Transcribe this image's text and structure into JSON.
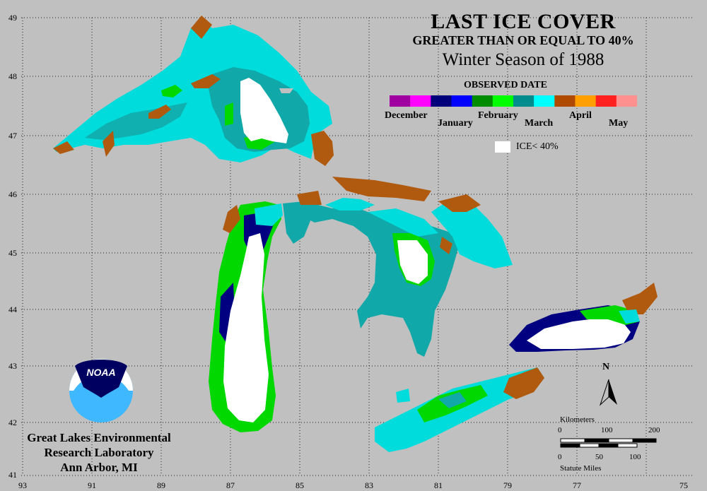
{
  "title": {
    "line1": "LAST ICE COVER",
    "line2": "GREATER THAN OR EQUAL TO 40%",
    "line3": "Winter Season of 1988"
  },
  "legend": {
    "title": "OBSERVED DATE",
    "months": [
      "December",
      "January",
      "February",
      "March",
      "April",
      "May"
    ],
    "colors": [
      "#a000a0",
      "#ff00ff",
      "#00007a",
      "#0000ff",
      "#008c00",
      "#00ff00",
      "#008c8c",
      "#00ffff",
      "#b04a00",
      "#ffa000",
      "#ff2020",
      "#ff9090"
    ],
    "ice_label": "ICE< 40%"
  },
  "axes": {
    "latitudes": [
      "49",
      "48",
      "47",
      "46",
      "45",
      "44",
      "43",
      "42",
      "41"
    ],
    "longitudes": [
      "93",
      "91",
      "89",
      "87",
      "85",
      "83",
      "81",
      "79",
      "77",
      "75"
    ]
  },
  "lab": {
    "line1": "Great Lakes Environmental",
    "line2": "Research Laboratory",
    "line3": "Ann Arbor, MI",
    "logo_text": "NOAA"
  },
  "scale_bar": {
    "km_label": "Kilometers",
    "km_ticks": [
      "0",
      "100",
      "200"
    ],
    "mi_label": "Statute Miles",
    "mi_ticks": [
      "0",
      "50",
      "100"
    ]
  },
  "north_label": "N",
  "colors": {
    "background": "#c0c0c0",
    "ice_lt_40": "#ffffff",
    "march_cyan": "#00e0e0",
    "march_teal": "#10a8a8",
    "february_green": "#00d800",
    "january_navy": "#000080",
    "april_brown": "#b05a10",
    "land_gray": "#c0c0c0"
  }
}
